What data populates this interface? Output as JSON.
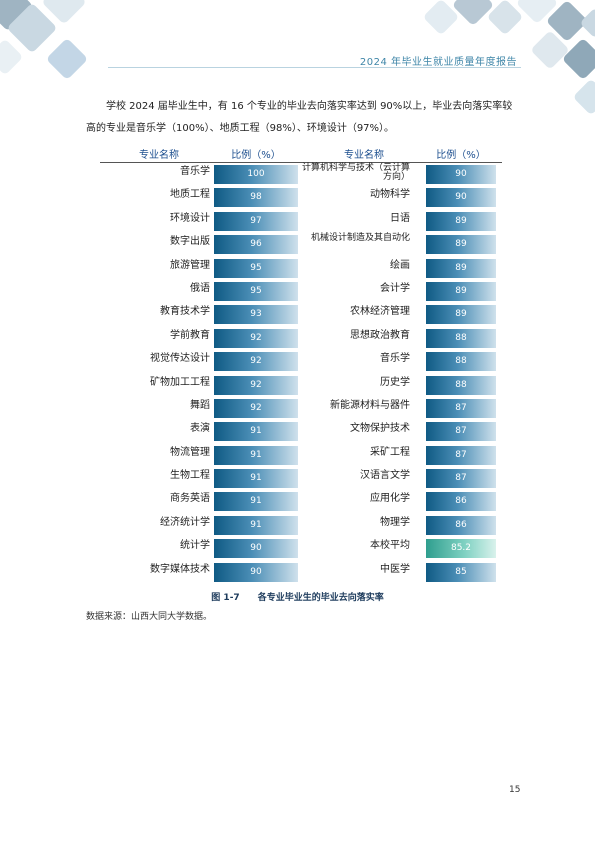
{
  "header": {
    "title": "2024 年毕业生就业质量年度报告"
  },
  "intro": "学校 2024 届毕业生中，有 16 个专业的毕业去向落实率达到 90%以上，毕业去向落实率较高的专业是音乐学（100%）、地质工程（98%）、环境设计（97%）。",
  "table": {
    "headers": [
      "专业名称",
      "比例（%）",
      "专业名称",
      "比例（%）"
    ],
    "rows": [
      {
        "left_name": "音乐学",
        "left_value": "100",
        "right_name": "计算机科学与技术（云计算方向）",
        "right_value": "90"
      },
      {
        "left_name": "地质工程",
        "left_value": "98",
        "right_name": "动物科学",
        "right_value": "90"
      },
      {
        "left_name": "环境设计",
        "left_value": "97",
        "right_name": "日语",
        "right_value": "89"
      },
      {
        "left_name": "数字出版",
        "left_value": "96",
        "right_name": "机械设计制造及其自动化",
        "right_value": "89"
      },
      {
        "left_name": "旅游管理",
        "left_value": "95",
        "right_name": "绘画",
        "right_value": "89"
      },
      {
        "left_name": "俄语",
        "left_value": "95",
        "right_name": "会计学",
        "right_value": "89"
      },
      {
        "left_name": "教育技术学",
        "left_value": "93",
        "right_name": "农林经济管理",
        "right_value": "89"
      },
      {
        "left_name": "学前教育",
        "left_value": "92",
        "right_name": "思想政治教育",
        "right_value": "88"
      },
      {
        "left_name": "视觉传达设计",
        "left_value": "92",
        "right_name": "音乐学",
        "right_value": "88"
      },
      {
        "left_name": "矿物加工工程",
        "left_value": "92",
        "right_name": "历史学",
        "right_value": "88"
      },
      {
        "left_name": "舞蹈",
        "left_value": "92",
        "right_name": "新能源材料与器件",
        "right_value": "87"
      },
      {
        "left_name": "表演",
        "left_value": "91",
        "right_name": "文物保护技术",
        "right_value": "87"
      },
      {
        "left_name": "物流管理",
        "left_value": "91",
        "right_name": "采矿工程",
        "right_value": "87"
      },
      {
        "left_name": "生物工程",
        "left_value": "91",
        "right_name": "汉语言文学",
        "right_value": "87"
      },
      {
        "left_name": "商务英语",
        "left_value": "91",
        "right_name": "应用化学",
        "right_value": "86"
      },
      {
        "left_name": "经济统计学",
        "left_value": "91",
        "right_name": "物理学",
        "right_value": "86"
      },
      {
        "left_name": "统计学",
        "left_value": "90",
        "right_name": "本校平均",
        "right_value": "85.2",
        "right_highlight": true
      },
      {
        "left_name": "数字媒体技术",
        "left_value": "90",
        "right_name": "中医学",
        "right_value": "85"
      }
    ]
  },
  "caption": "图 1-7　　各专业毕业生的毕业去向落实率",
  "source": "数据来源：山西大同大学数据。",
  "page_number": "15",
  "colors": {
    "bar": "#0f5a84",
    "bar_highlight": "#2f9e8e",
    "header_text": "#3f86a8",
    "deco_dark": "#8fa8b8",
    "deco_light": "#d6e4ec"
  }
}
